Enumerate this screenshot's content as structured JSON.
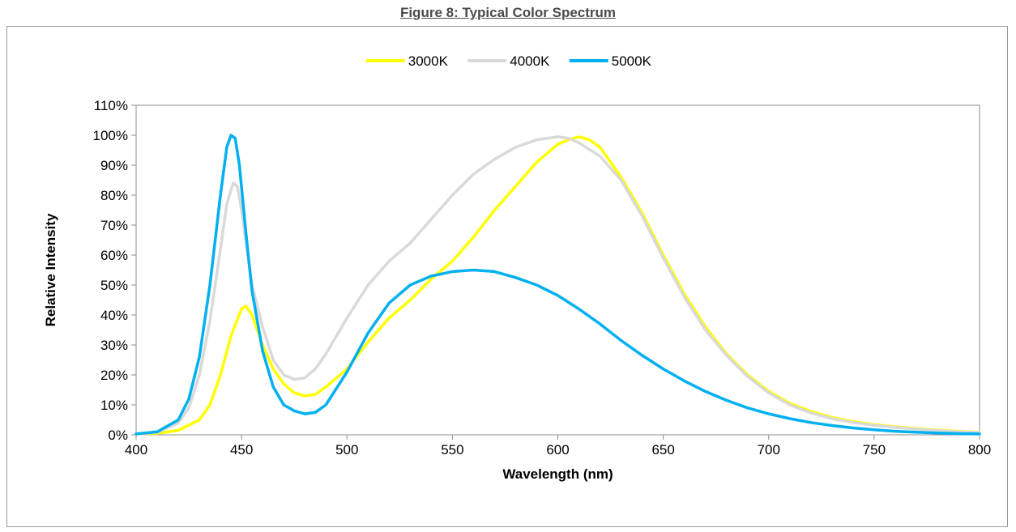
{
  "figure": {
    "title": "Figure 8:  Typical Color Spectrum"
  },
  "chart_data": {
    "type": "line",
    "title": "Figure 8:  Typical Color Spectrum",
    "xlabel": "Wavelength (nm)",
    "ylabel": "Relative Intensity",
    "xlim": [
      400,
      800
    ],
    "ylim": [
      0,
      1.1
    ],
    "xticks": [
      400,
      450,
      500,
      550,
      600,
      650,
      700,
      750,
      800
    ],
    "yticks": [
      0,
      0.1,
      0.2,
      0.3,
      0.4,
      0.5,
      0.6,
      0.7,
      0.8,
      0.9,
      1.0,
      1.1
    ],
    "xtick_labels": [
      "400",
      "450",
      "500",
      "550",
      "600",
      "650",
      "700",
      "750",
      "800"
    ],
    "ytick_labels": [
      "0%",
      "10%",
      "20%",
      "30%",
      "40%",
      "50%",
      "60%",
      "70%",
      "80%",
      "90%",
      "100%",
      "110%"
    ],
    "grid": false,
    "legend": "top-center",
    "series": [
      {
        "name": "3000K",
        "color": "#ffff00",
        "x": [
          400,
          410,
          420,
          430,
          435,
          440,
          445,
          450,
          452,
          455,
          460,
          465,
          470,
          475,
          480,
          485,
          490,
          500,
          510,
          520,
          530,
          540,
          550,
          560,
          570,
          580,
          590,
          600,
          605,
          610,
          615,
          620,
          630,
          640,
          650,
          660,
          670,
          680,
          690,
          700,
          710,
          720,
          730,
          740,
          750,
          760,
          770,
          780,
          790,
          800
        ],
        "y": [
          0.003,
          0.005,
          0.015,
          0.05,
          0.1,
          0.2,
          0.33,
          0.42,
          0.43,
          0.4,
          0.3,
          0.22,
          0.17,
          0.14,
          0.13,
          0.135,
          0.16,
          0.22,
          0.31,
          0.39,
          0.45,
          0.52,
          0.58,
          0.66,
          0.75,
          0.83,
          0.91,
          0.97,
          0.985,
          0.995,
          0.985,
          0.96,
          0.86,
          0.74,
          0.6,
          0.47,
          0.36,
          0.27,
          0.2,
          0.145,
          0.105,
          0.078,
          0.058,
          0.044,
          0.034,
          0.027,
          0.021,
          0.016,
          0.012,
          0.009
        ]
      },
      {
        "name": "4000K",
        "color": "#d9d9d9",
        "x": [
          400,
          410,
          420,
          425,
          430,
          435,
          440,
          443,
          446,
          448,
          450,
          453,
          455,
          460,
          465,
          470,
          475,
          480,
          485,
          490,
          500,
          510,
          520,
          530,
          540,
          550,
          560,
          570,
          580,
          590,
          600,
          605,
          610,
          620,
          630,
          640,
          650,
          660,
          670,
          680,
          690,
          700,
          710,
          720,
          730,
          740,
          750,
          760,
          770,
          780,
          790,
          800
        ],
        "y": [
          0.003,
          0.008,
          0.04,
          0.09,
          0.2,
          0.38,
          0.62,
          0.77,
          0.84,
          0.83,
          0.75,
          0.6,
          0.5,
          0.36,
          0.25,
          0.2,
          0.185,
          0.19,
          0.22,
          0.27,
          0.39,
          0.5,
          0.58,
          0.64,
          0.72,
          0.8,
          0.87,
          0.92,
          0.96,
          0.985,
          0.995,
          0.99,
          0.975,
          0.93,
          0.85,
          0.73,
          0.59,
          0.46,
          0.35,
          0.265,
          0.195,
          0.14,
          0.1,
          0.073,
          0.054,
          0.041,
          0.032,
          0.025,
          0.019,
          0.014,
          0.01,
          0.008
        ]
      },
      {
        "name": "5000K",
        "color": "#00b0f0",
        "x": [
          400,
          410,
          420,
          425,
          430,
          435,
          440,
          443,
          445,
          447,
          449,
          452,
          455,
          460,
          465,
          470,
          475,
          480,
          485,
          490,
          500,
          510,
          520,
          530,
          540,
          550,
          560,
          570,
          580,
          590,
          600,
          610,
          620,
          630,
          640,
          650,
          660,
          670,
          680,
          690,
          700,
          710,
          720,
          730,
          740,
          750,
          760,
          770,
          780,
          790,
          800
        ],
        "y": [
          0.003,
          0.01,
          0.05,
          0.12,
          0.26,
          0.5,
          0.8,
          0.96,
          1.0,
          0.99,
          0.9,
          0.68,
          0.48,
          0.28,
          0.16,
          0.1,
          0.08,
          0.07,
          0.075,
          0.1,
          0.21,
          0.34,
          0.44,
          0.5,
          0.53,
          0.545,
          0.55,
          0.545,
          0.525,
          0.5,
          0.465,
          0.42,
          0.37,
          0.315,
          0.265,
          0.22,
          0.18,
          0.145,
          0.115,
          0.09,
          0.07,
          0.054,
          0.041,
          0.031,
          0.023,
          0.017,
          0.012,
          0.009,
          0.006,
          0.004,
          0.003
        ]
      }
    ]
  }
}
